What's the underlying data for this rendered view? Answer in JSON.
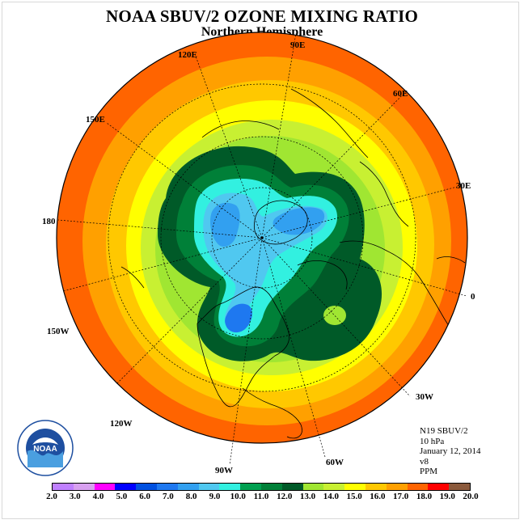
{
  "title": "NOAA SBUV/2 OZONE MIXING RATIO",
  "subtitle": "Northern Hemisphere",
  "longitude_labels": [
    {
      "text": "120E",
      "lon": 120
    },
    {
      "text": "90E",
      "lon": 90
    },
    {
      "text": "60E",
      "lon": 60
    },
    {
      "text": "30E",
      "lon": 30
    },
    {
      "text": "0",
      "lon": 0
    },
    {
      "text": "150E",
      "lon": 150
    },
    {
      "text": "180",
      "lon": 180
    },
    {
      "text": "150W",
      "lon": -150
    },
    {
      "text": "120W",
      "lon": -120
    },
    {
      "text": "90W",
      "lon": -90
    },
    {
      "text": "60W",
      "lon": -60
    },
    {
      "text": "30W",
      "lon": -30
    }
  ],
  "info": {
    "satellite": "N19 SBUV/2",
    "pressure": "10 hPa",
    "date": "January 12, 2014",
    "version": "v8",
    "units": "PPM"
  },
  "colorbar": {
    "ticks": [
      "2.0",
      "3.0",
      "4.0",
      "5.0",
      "6.0",
      "7.0",
      "8.0",
      "9.0",
      "10.0",
      "11.0",
      "12.0",
      "13.0",
      "14.0",
      "15.0",
      "16.0",
      "17.0",
      "18.0",
      "19.0",
      "20.0"
    ],
    "colors": [
      "#c080ff",
      "#d8a0f0",
      "#ff00ff",
      "#0000ff",
      "#0050e0",
      "#1e78f0",
      "#32a0f0",
      "#50c8f0",
      "#32f0e0",
      "#00a050",
      "#008038",
      "#005a28",
      "#a0e632",
      "#c8f032",
      "#ffff00",
      "#ffc800",
      "#ffa000",
      "#ff6400",
      "#ff0000",
      "#8b5a3c"
    ]
  },
  "logo": {
    "text": "NOAA",
    "ring_text": "NATIONAL OCEANIC AND ATMOSPHERIC ADMINISTRATION · U.S. DEPARTMENT OF COMMERCE"
  },
  "map_colors": {
    "outer_orange": "#ff6400",
    "orange": "#ffa000",
    "light_orange": "#ffc800",
    "yellow": "#ffff00",
    "yellow_green": "#c8f032",
    "green": "#a0e632",
    "dark_green": "#005a28",
    "mid_green": "#008038",
    "cyan": "#32f0e0",
    "sky": "#50c8f0",
    "blue": "#32a0f0",
    "dark_blue": "#1e78f0",
    "red": "#ff0000"
  }
}
